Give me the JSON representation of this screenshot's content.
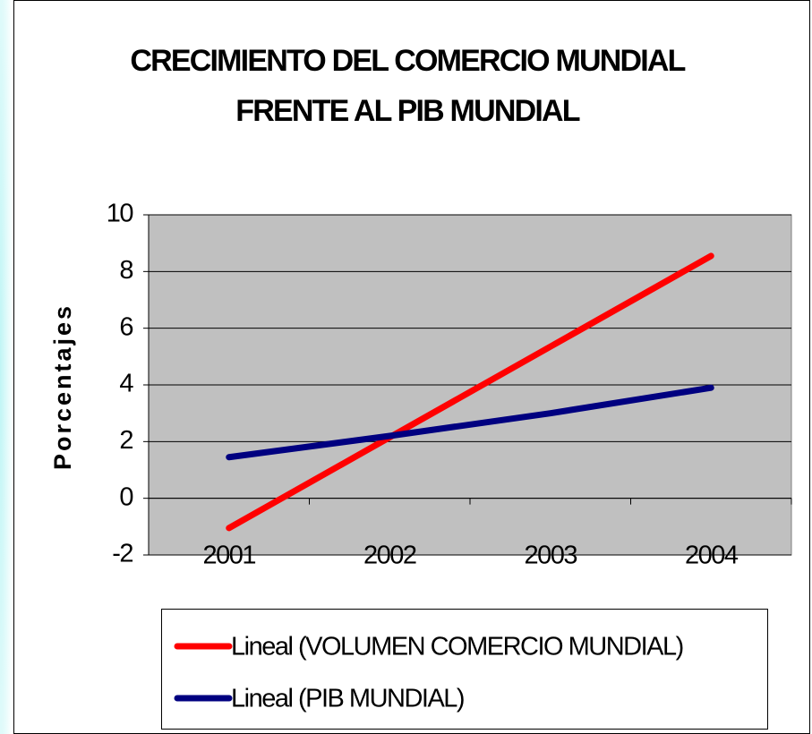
{
  "chart_data": {
    "type": "line",
    "title": [
      "CRECIMIENTO DEL COMERCIO MUNDIAL",
      "FRENTE AL PIB MUNDIAL"
    ],
    "y_label": "Porcentajes",
    "categories": [
      "2001",
      "2002",
      "2003",
      "2004"
    ],
    "series": [
      {
        "name": "Lineal (VOLUMEN COMERCIO MUNDIAL)",
        "color": "#ff0000",
        "values": [
          -1.05,
          2.15,
          5.35,
          8.55
        ]
      },
      {
        "name": "Lineal (PIB MUNDIAL)",
        "color": "#000080",
        "values": [
          1.45,
          2.2,
          3.0,
          3.9
        ]
      }
    ],
    "ylim": [
      -2,
      10
    ],
    "yticks": [
      -2,
      0,
      2,
      4,
      6,
      8,
      10
    ],
    "grid": true,
    "legend": "bottom"
  }
}
